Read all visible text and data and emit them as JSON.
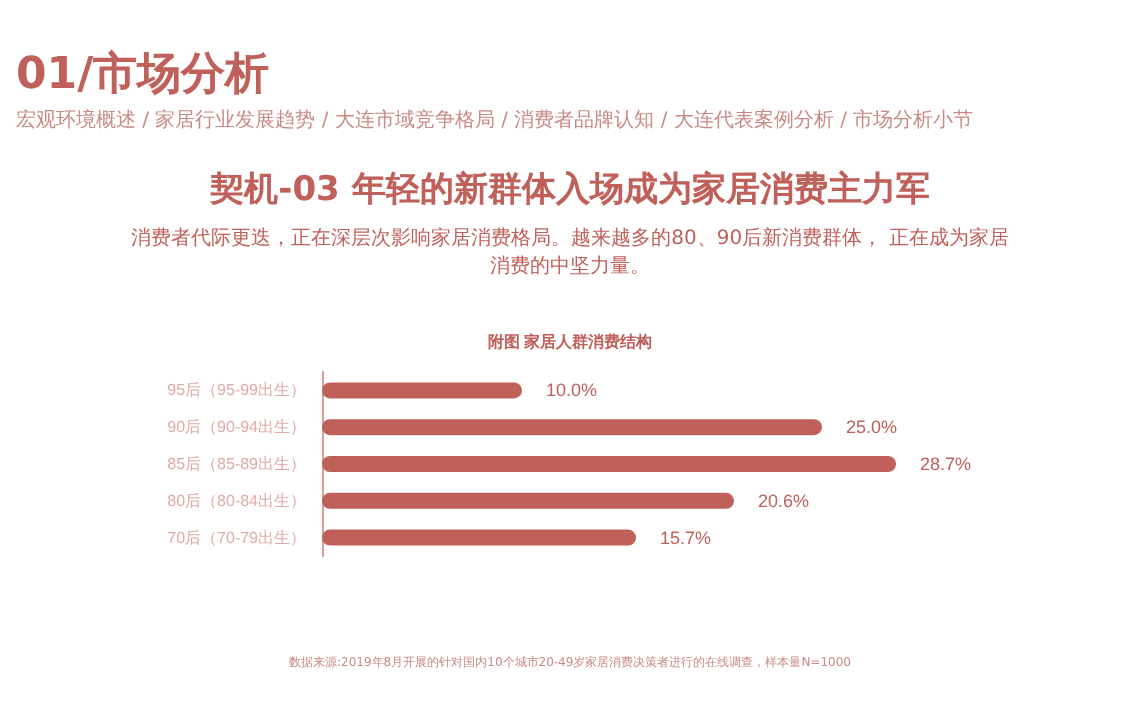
{
  "chart_data": {
    "type": "bar",
    "orientation": "horizontal",
    "title": "附图 家居人群消费结构",
    "annotations": [
      "01/市场分析",
      "宏观环境概述 / 家居行业发展趋势 / 大连市域竞争格局 / 消费者品牌认知 / 大连代表案例分析 / 市场分析小节",
      "契机-03  年轻的新群体入场成为家居消费主力军",
      "消费者代际更迭，正在深层次影响家居消费格局。越来越多的80、90后新消费群体， 正在成为家居消费的中坚力量。",
      "数据来源:2019年8月开展的针对国内10个城市20-49岁家居消费决策者进行的在线调查，样本量N=1000"
    ],
    "categories": [
      "95后（95-99出生）",
      "90后（90-94出生）",
      "85后（85-89出生）",
      "80后（80-84出生）",
      "70后（70-79出生）"
    ],
    "values": [
      10.0,
      25.0,
      28.7,
      20.6,
      15.7
    ],
    "value_labels": [
      "10.0%",
      "25.0%",
      "28.7%",
      "20.6%",
      "15.7%"
    ],
    "color": "#c0605a"
  }
}
